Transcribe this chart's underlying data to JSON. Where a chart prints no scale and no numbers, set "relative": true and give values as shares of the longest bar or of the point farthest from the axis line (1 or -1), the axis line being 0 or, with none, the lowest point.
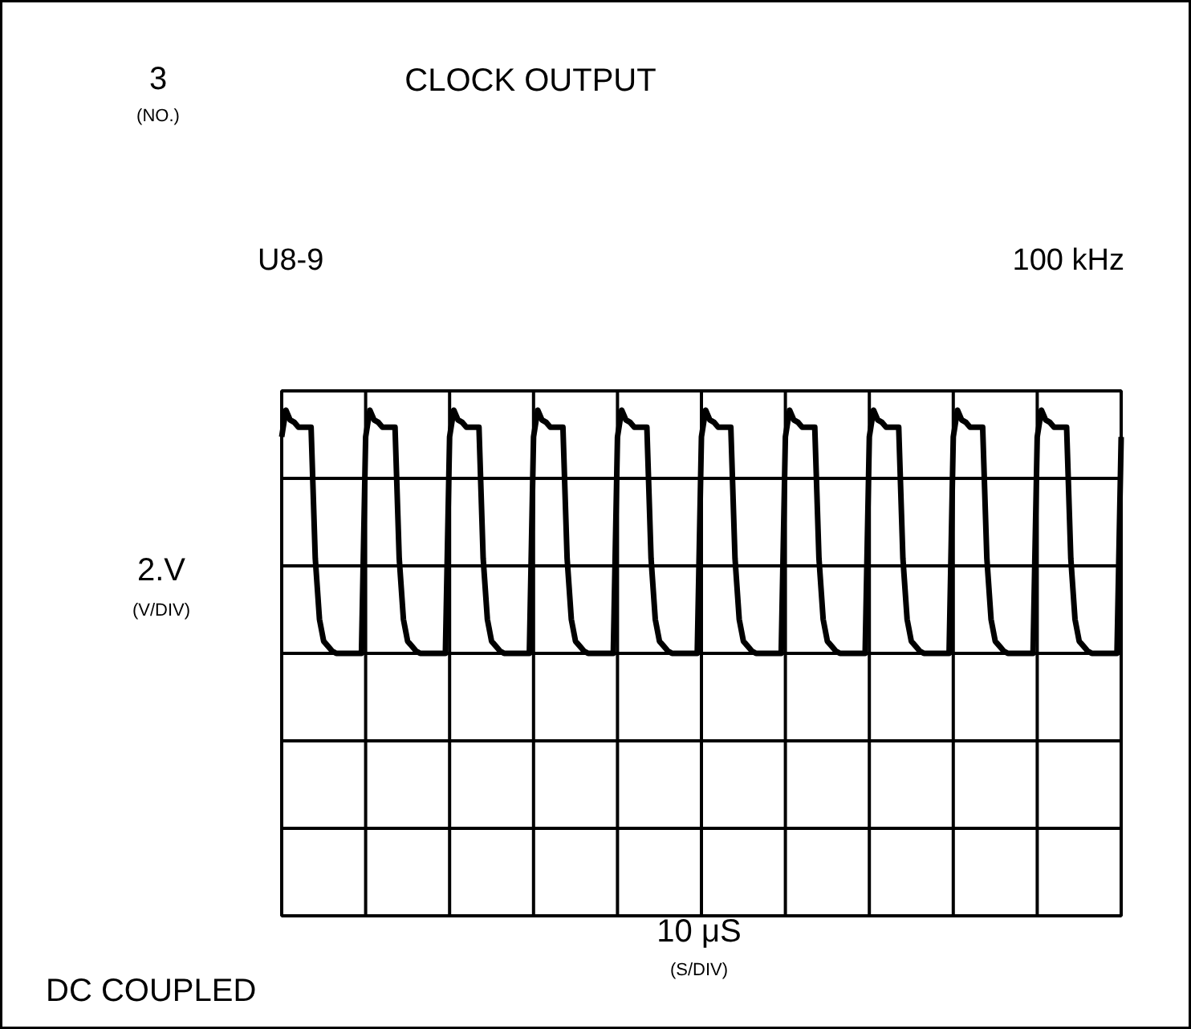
{
  "chart_data": {
    "type": "line",
    "title": "CLOCK OUTPUT",
    "annotations": [
      "3",
      "(NO.)",
      "U8-9",
      "100 kHz",
      "2.V",
      "(V/DIV)",
      "10 μS",
      "(S/DIV)",
      "DC COUPLED"
    ],
    "relative": true,
    "categories": [
      null,
      null,
      null,
      null,
      null,
      null,
      null,
      null,
      null,
      null,
      null,
      null,
      null,
      null,
      null,
      null,
      null,
      null,
      null,
      null,
      null,
      null,
      null,
      null,
      null,
      null,
      null,
      null,
      null,
      null,
      null,
      null,
      null,
      null,
      null,
      null,
      null,
      null,
      null,
      null,
      null,
      null,
      null,
      null,
      null,
      null,
      null,
      null,
      null,
      null,
      null,
      null,
      null,
      null,
      null,
      null,
      null,
      null,
      null,
      null,
      null,
      null,
      null,
      null,
      null,
      null,
      null,
      null,
      null,
      null,
      null,
      null,
      null,
      null,
      null,
      null,
      null,
      null,
      null,
      null,
      null,
      null,
      null,
      null,
      null,
      null,
      null,
      null,
      null,
      null,
      null,
      null,
      null,
      null,
      null,
      null,
      null,
      null,
      null,
      null,
      null,
      null,
      null,
      null,
      null,
      null,
      null,
      null,
      null,
      null,
      null,
      null,
      null,
      null,
      null,
      null,
      null,
      null,
      null,
      null,
      null,
      null,
      null,
      null,
      null,
      null,
      null,
      null,
      null,
      null,
      null,
      null,
      null,
      null,
      null,
      null,
      null,
      null,
      null,
      null,
      null,
      null,
      null,
      null,
      null,
      null,
      null,
      null,
      null,
      null,
      null,
      null,
      null,
      null,
      null,
      null,
      null,
      null,
      null,
      null,
      null,
      null,
      null,
      null,
      null,
      null,
      null,
      null,
      null,
      null,
      null,
      null,
      null,
      null,
      null,
      null,
      null,
      null,
      null,
      null,
      null,
      null,
      null,
      null,
      null,
      null,
      null,
      null,
      null,
      null,
      null,
      null,
      null,
      null,
      null,
      null,
      null,
      null,
      null,
      null,
      null
    ],
    "values": [
      0.89,
      1,
      0.96,
      0.95,
      0.93,
      0.93,
      0.93,
      0.93,
      0.39,
      0.14,
      0.05,
      0.03,
      0.01,
      0,
      0,
      0,
      0,
      0,
      0,
      0,
      0.89,
      1,
      0.96,
      0.95,
      0.93,
      0.93,
      0.93,
      0.93,
      0.39,
      0.14,
      0.05,
      0.03,
      0.01,
      0,
      0,
      0,
      0,
      0,
      0,
      0,
      0.89,
      1,
      0.96,
      0.95,
      0.93,
      0.93,
      0.93,
      0.93,
      0.39,
      0.14,
      0.05,
      0.03,
      0.01,
      0,
      0,
      0,
      0,
      0,
      0,
      0,
      0.89,
      1,
      0.96,
      0.95,
      0.93,
      0.93,
      0.93,
      0.93,
      0.39,
      0.14,
      0.05,
      0.03,
      0.01,
      0,
      0,
      0,
      0,
      0,
      0,
      0,
      0.89,
      1,
      0.96,
      0.95,
      0.93,
      0.93,
      0.93,
      0.93,
      0.39,
      0.14,
      0.05,
      0.03,
      0.01,
      0,
      0,
      0,
      0,
      0,
      0,
      0,
      0.89,
      1,
      0.96,
      0.95,
      0.93,
      0.93,
      0.93,
      0.93,
      0.39,
      0.14,
      0.05,
      0.03,
      0.01,
      0,
      0,
      0,
      0,
      0,
      0,
      0,
      0.89,
      1,
      0.96,
      0.95,
      0.93,
      0.93,
      0.93,
      0.93,
      0.39,
      0.14,
      0.05,
      0.03,
      0.01,
      0,
      0,
      0,
      0,
      0,
      0,
      0,
      0.89,
      1,
      0.96,
      0.95,
      0.93,
      0.93,
      0.93,
      0.93,
      0.39,
      0.14,
      0.05,
      0.03,
      0.01,
      0,
      0,
      0,
      0,
      0,
      0,
      0,
      0.89,
      1,
      0.96,
      0.95,
      0.93,
      0.93,
      0.93,
      0.93,
      0.39,
      0.14,
      0.05,
      0.03,
      0.01,
      0,
      0,
      0,
      0,
      0,
      0,
      0,
      0.89,
      1,
      0.96,
      0.95,
      0.93,
      0.93,
      0.93,
      0.93,
      0.39,
      0.14,
      0.05,
      0.03,
      0.01,
      0,
      0,
      0,
      0,
      0,
      0,
      0,
      0.89
    ],
    "color": "#000000",
    "grid": true,
    "line_style": "solid",
    "marker": "none"
  }
}
